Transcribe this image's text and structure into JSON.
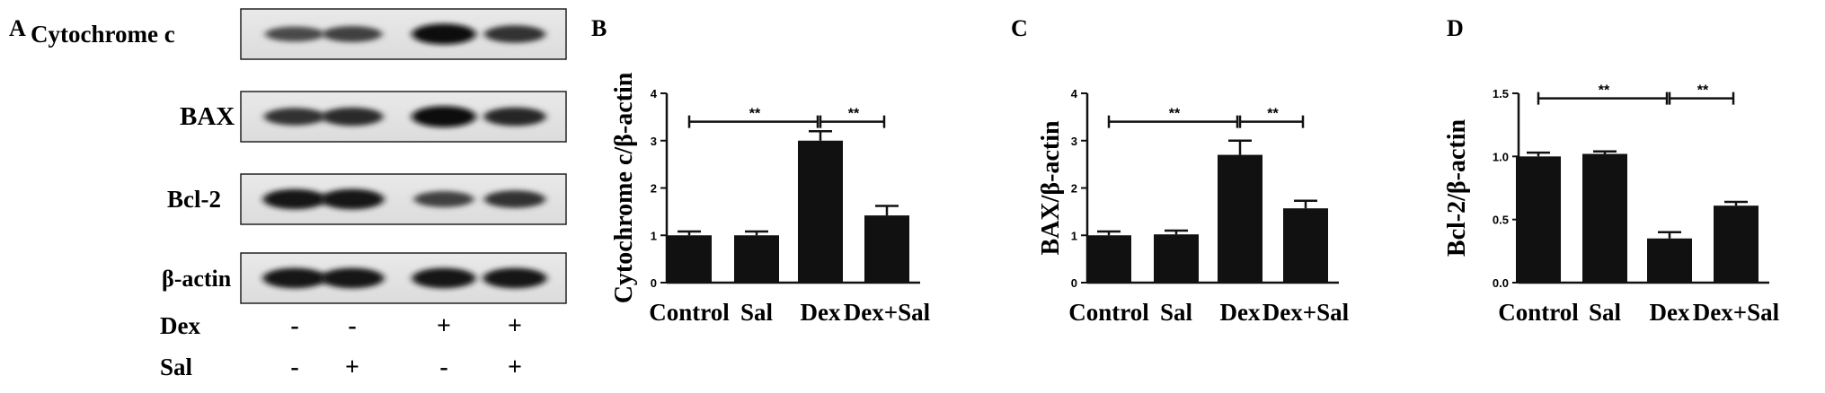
{
  "panel_a": {
    "letter": "A",
    "blot_labels": [
      "Cytochrome c",
      "BAX",
      "Bcl-2",
      "β-actin"
    ],
    "band_intensity": [
      [
        0.55,
        0.62,
        0.95,
        0.72
      ],
      [
        0.72,
        0.78,
        0.98,
        0.8
      ],
      [
        0.9,
        0.92,
        0.62,
        0.72
      ],
      [
        0.92,
        0.92,
        0.92,
        0.92
      ]
    ],
    "treatments": [
      {
        "label": "Dex",
        "signs": [
          "-",
          "-",
          "+",
          "+"
        ]
      },
      {
        "label": "Sal",
        "signs": [
          "-",
          "+",
          "-",
          "+"
        ]
      }
    ]
  },
  "chart_data": [
    {
      "panel": "B",
      "type": "bar",
      "categories": [
        "Control",
        "Sal",
        "Dex",
        "Dex+Sal"
      ],
      "values": [
        1.0,
        1.0,
        3.0,
        1.42
      ],
      "errors": [
        0.08,
        0.08,
        0.2,
        0.2
      ],
      "ylabel": "Cytochrome c/β-actin",
      "ylim": [
        0,
        4
      ],
      "yticks": [
        "0",
        "1",
        "2",
        "3",
        "4"
      ],
      "significance": [
        {
          "from": 0,
          "to": 2,
          "y": 3.4,
          "label": "**"
        },
        {
          "from": 2,
          "to": 3,
          "y": 3.4,
          "label": "**"
        }
      ]
    },
    {
      "panel": "C",
      "type": "bar",
      "categories": [
        "Control",
        "Sal",
        "Dex",
        "Dex+Sal"
      ],
      "values": [
        1.0,
        1.02,
        2.7,
        1.57
      ],
      "errors": [
        0.08,
        0.08,
        0.3,
        0.16
      ],
      "ylabel": "BAX/β-actin",
      "ylim": [
        0,
        4
      ],
      "yticks": [
        "0",
        "1",
        "2",
        "3",
        "4"
      ],
      "significance": [
        {
          "from": 0,
          "to": 2,
          "y": 3.4,
          "label": "**"
        },
        {
          "from": 2,
          "to": 3,
          "y": 3.4,
          "label": "**"
        }
      ]
    },
    {
      "panel": "D",
      "type": "bar",
      "categories": [
        "Control",
        "Sal",
        "Dex",
        "Dex+Sal"
      ],
      "values": [
        1.0,
        1.02,
        0.35,
        0.61
      ],
      "errors": [
        0.03,
        0.02,
        0.05,
        0.03
      ],
      "ylabel": "Bcl-2/β-actin",
      "ylim": [
        0,
        1.5
      ],
      "yticks": [
        "0.0",
        "0.5",
        "1.0",
        "1.5"
      ],
      "significance": [
        {
          "from": 0,
          "to": 2,
          "y": 1.46,
          "label": "**"
        },
        {
          "from": 2,
          "to": 3,
          "y": 1.46,
          "label": "**"
        }
      ]
    }
  ]
}
